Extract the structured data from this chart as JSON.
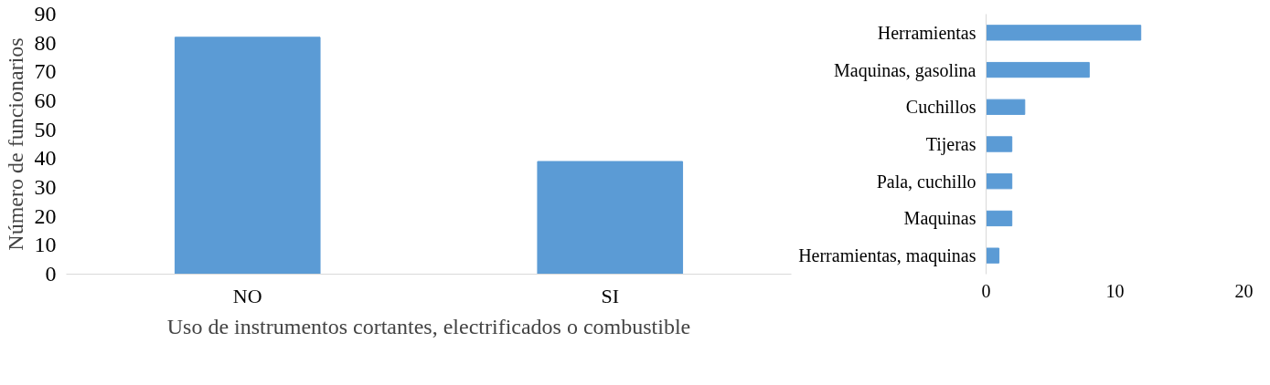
{
  "chart_data": [
    {
      "type": "bar",
      "xlabel": "Uso de instrumentos cortantes, electrificados o combustible",
      "ylabel": "Número de funcionarios",
      "categories": [
        "NO",
        "SI"
      ],
      "values": [
        82,
        39
      ],
      "color": "#5b9bd5",
      "ylim": [
        0,
        90
      ],
      "yticks": [
        0,
        10,
        20,
        30,
        40,
        50,
        60,
        70,
        80,
        90
      ],
      "grid": false
    },
    {
      "type": "bar",
      "orientation": "horizontal",
      "categories": [
        "Herramientas",
        "Maquinas, gasolina",
        "Cuchillos",
        "Tijeras",
        "Pala, cuchillo",
        "Maquinas",
        "Herramientas, maquinas"
      ],
      "values": [
        12,
        8,
        3,
        2,
        2,
        2,
        1
      ],
      "color": "#5b9bd5",
      "xlim": [
        0,
        20
      ],
      "xticks": [
        0,
        10,
        20
      ],
      "grid": false
    }
  ]
}
